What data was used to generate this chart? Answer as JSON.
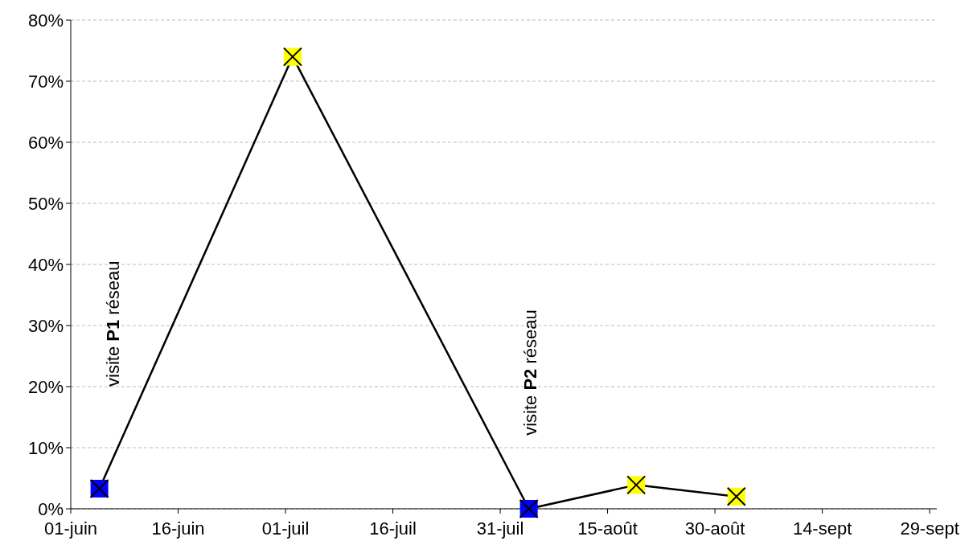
{
  "chart_data": {
    "type": "line",
    "x": [
      "--06-05",
      "--07-02",
      "--08-04",
      "--08-19",
      "--09-02"
    ],
    "series": [
      {
        "color": "#000000",
        "values": [
          3.3,
          74,
          0,
          3.9,
          2
        ],
        "colors": [
          "#0000ff",
          "#ffff00",
          "#0000ff",
          "#ffff00",
          "#ffff00"
        ]
      }
    ],
    "marker": "square",
    "line_style": "solid",
    "grid": "y",
    "ylim": [
      0,
      80
    ],
    "yticks": [
      {
        "value": 0,
        "label": "0%"
      },
      {
        "value": 10,
        "label": "10%"
      },
      {
        "value": 20,
        "label": "20%"
      },
      {
        "value": 30,
        "label": "30%"
      },
      {
        "value": 40,
        "label": "40%"
      },
      {
        "value": 50,
        "label": "50%"
      },
      {
        "value": 60,
        "label": "60%"
      },
      {
        "value": 70,
        "label": "70%"
      },
      {
        "value": 80,
        "label": "80%"
      }
    ],
    "xlim": [
      "--06-01",
      "--09-30"
    ],
    "xticks": [
      {
        "value": "--06-01",
        "label": "01-juin"
      },
      {
        "value": "--06-16",
        "label": "16-juin"
      },
      {
        "value": "--07-01",
        "label": "01-juil"
      },
      {
        "value": "--07-16",
        "label": "16-juil"
      },
      {
        "value": "--07-31",
        "label": "31-juil"
      },
      {
        "value": "--08-15",
        "label": "15-août"
      },
      {
        "value": "--08-30",
        "label": "30-août"
      },
      {
        "value": "--09-14",
        "label": "14-sept"
      },
      {
        "value": "--09-29",
        "label": "29-sept"
      }
    ],
    "annotations": [
      "visite P1 réseau",
      "visite P2 réseau"
    ]
  }
}
